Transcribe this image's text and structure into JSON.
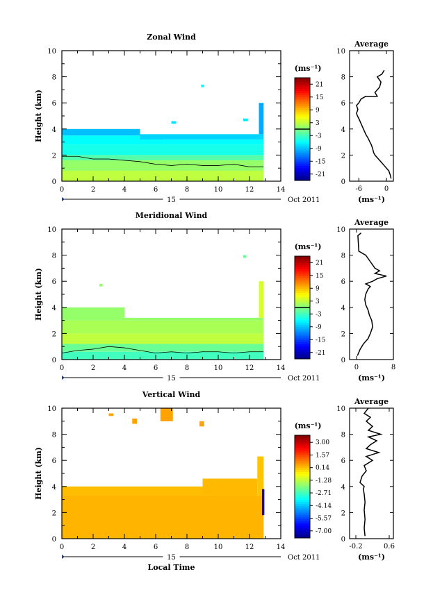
{
  "chart_data": [
    {
      "type": "heatmap",
      "title": "Zonal Wind",
      "xlabel": "",
      "ylabel": "Height (km)",
      "xlim": [
        0,
        14
      ],
      "ylim": [
        0,
        10
      ],
      "x_ticks": [
        "0",
        "2",
        "4",
        "6",
        "8",
        "10",
        "12",
        "14"
      ],
      "y_ticks": [
        "0",
        "2",
        "4",
        "6",
        "8",
        "10"
      ],
      "date_day": "15",
      "date_month": "Oct 2011",
      "colorbar": {
        "unit": "(ms⁻¹)",
        "min": -24,
        "max": 24,
        "tick_labels": [
          "21",
          "15",
          "9",
          "3",
          "-3",
          "-9",
          "-15",
          "-21"
        ],
        "tick_values": [
          21,
          15,
          9,
          3,
          -3,
          -9,
          -15,
          -21
        ],
        "zero_line": 0
      },
      "cells": [
        {
          "x0": 0,
          "x1": 12.9,
          "y0": 0,
          "y1": 0.8,
          "v": 3
        },
        {
          "x0": 0,
          "x1": 12.9,
          "y0": 0.8,
          "y1": 1.6,
          "v": 1
        },
        {
          "x0": 0,
          "x1": 12.9,
          "y0": 1.6,
          "y1": 2.0,
          "v": -2
        },
        {
          "x0": 0,
          "x1": 12.9,
          "y0": 2.0,
          "y1": 2.8,
          "v": -5
        },
        {
          "x0": 0,
          "x1": 6.5,
          "y0": 2.8,
          "y1": 3.5,
          "v": -6
        },
        {
          "x0": 6.5,
          "x1": 12.9,
          "y0": 2.8,
          "y1": 3.2,
          "v": -6
        },
        {
          "x0": 0,
          "x1": 5,
          "y0": 3.5,
          "y1": 4.0,
          "v": -9
        },
        {
          "x0": 5,
          "x1": 12.9,
          "y0": 3.2,
          "y1": 3.6,
          "v": -8
        },
        {
          "x0": 12.6,
          "x1": 12.9,
          "y0": 3.6,
          "y1": 6.0,
          "v": -10
        },
        {
          "x0": 7.0,
          "x1": 7.3,
          "y0": 4.4,
          "y1": 4.6,
          "v": -7
        },
        {
          "x0": 11.6,
          "x1": 11.9,
          "y0": 4.6,
          "y1": 4.8,
          "v": -7
        },
        {
          "x0": 8.9,
          "x1": 9.1,
          "y0": 7.2,
          "y1": 7.4,
          "v": -6
        }
      ],
      "zero_contour": {
        "x": [
          0,
          1,
          2,
          3,
          4,
          5,
          6,
          7,
          8,
          9,
          10,
          11,
          12,
          12.9
        ],
        "y": [
          1.9,
          1.9,
          1.7,
          1.7,
          1.6,
          1.5,
          1.3,
          1.2,
          1.3,
          1.2,
          1.2,
          1.3,
          1.1,
          1.1
        ]
      },
      "profile": {
        "title": "Average",
        "xlabel": "(ms⁻¹)",
        "x_ticks": [
          "-6",
          "0"
        ],
        "tick_values": [
          -6,
          0
        ],
        "xlim": [
          -8,
          1.5
        ],
        "ylim": [
          0,
          10
        ],
        "y_ticks": [
          "0",
          "2",
          "4",
          "6",
          "8",
          "10"
        ],
        "x": [
          1.0,
          0.8,
          0.5,
          0,
          -0.5,
          -1,
          -1.5,
          -2,
          -2.5,
          -2.8,
          -3,
          -3.3,
          -3.6,
          -4.0,
          -4.5,
          -5,
          -5.5,
          -6.0,
          -6.3,
          -6.5,
          -6.2,
          -6.5,
          -6.0,
          -5.5,
          -4.5,
          -2.0,
          -2.5,
          -1.5,
          -1.2,
          -2.0,
          -1.0,
          -0.5
        ],
        "y": [
          0.2,
          0.5,
          0.8,
          1.0,
          1.2,
          1.4,
          1.6,
          1.8,
          2.0,
          2.2,
          2.5,
          2.8,
          3.0,
          3.3,
          3.6,
          4.0,
          4.4,
          4.8,
          5.0,
          5.2,
          5.5,
          5.8,
          6.0,
          6.3,
          6.5,
          6.5,
          6.8,
          7.2,
          7.6,
          8.0,
          8.2,
          8.5
        ]
      }
    },
    {
      "type": "heatmap",
      "title": "Meridional Wind",
      "xlabel": "",
      "ylabel": "Height (km)",
      "xlim": [
        0,
        14
      ],
      "ylim": [
        0,
        10
      ],
      "x_ticks": [
        "0",
        "2",
        "4",
        "6",
        "8",
        "10",
        "12",
        "14"
      ],
      "y_ticks": [
        "0",
        "2",
        "4",
        "6",
        "8",
        "10"
      ],
      "date_day": "15",
      "date_month": "Oct 2011",
      "colorbar": {
        "unit": "(ms⁻¹)",
        "min": -24,
        "max": 24,
        "tick_labels": [
          "21",
          "15",
          "9",
          "3",
          "-3",
          "-9",
          "-15",
          "-21"
        ],
        "tick_values": [
          21,
          15,
          9,
          3,
          -3,
          -9,
          -15,
          -21
        ],
        "zero_line": 0
      },
      "cells": [
        {
          "x0": 0,
          "x1": 12.9,
          "y0": 0,
          "y1": 0.6,
          "v": -3
        },
        {
          "x0": 0,
          "x1": 12.9,
          "y0": 0.6,
          "y1": 1.2,
          "v": -1
        },
        {
          "x0": 0,
          "x1": 12.9,
          "y0": 1.2,
          "y1": 2.0,
          "v": 3
        },
        {
          "x0": 0,
          "x1": 12.9,
          "y0": 2.0,
          "y1": 3.0,
          "v": 2
        },
        {
          "x0": 0,
          "x1": 4.0,
          "y0": 3.0,
          "y1": 4.0,
          "v": 1
        },
        {
          "x0": 4.0,
          "x1": 12.9,
          "y0": 3.0,
          "y1": 3.2,
          "v": 1
        },
        {
          "x0": 12.6,
          "x1": 12.9,
          "y0": 3.2,
          "y1": 6.0,
          "v": 4
        },
        {
          "x0": 2.4,
          "x1": 2.6,
          "y0": 5.6,
          "y1": 5.8,
          "v": 1
        },
        {
          "x0": 11.6,
          "x1": 11.8,
          "y0": 7.8,
          "y1": 8.0,
          "v": -1
        }
      ],
      "zero_contour": {
        "x": [
          0,
          1,
          2,
          3,
          4,
          5,
          6,
          7,
          8,
          9,
          10,
          11,
          12,
          12.9
        ],
        "y": [
          0.5,
          0.7,
          0.8,
          1.0,
          0.9,
          0.7,
          0.5,
          0.6,
          0.5,
          0.6,
          0.6,
          0.5,
          0.6,
          0.6
        ]
      },
      "profile": {
        "title": "Average",
        "xlabel": "(ms⁻¹)",
        "x_ticks": [
          "0",
          "8"
        ],
        "tick_values": [
          0,
          8
        ],
        "xlim": [
          -1.5,
          8
        ],
        "ylim": [
          0,
          10
        ],
        "y_ticks": [
          "0",
          "2",
          "4",
          "6",
          "8",
          "10"
        ],
        "x": [
          0.2,
          0.8,
          1.5,
          2.5,
          3.0,
          3.5,
          3.3,
          2.8,
          2.5,
          2.0,
          1.8,
          2.0,
          2.5,
          3.0,
          2.0,
          3.5,
          4.5,
          6.5,
          4.0,
          5.0,
          4.0,
          3.0,
          2.0,
          0.5,
          0.3,
          1.0
        ],
        "y": [
          0.3,
          0.8,
          1.2,
          1.6,
          2.0,
          2.5,
          3.0,
          3.4,
          3.8,
          4.2,
          4.6,
          5.0,
          5.4,
          5.6,
          5.8,
          6.0,
          6.2,
          6.4,
          6.6,
          6.8,
          7.0,
          7.5,
          8.0,
          8.3,
          9.5,
          9.7
        ]
      }
    },
    {
      "type": "heatmap",
      "title": "Vertical Wind",
      "xlabel": "Local Time",
      "ylabel": "Height (km)",
      "xlim": [
        0,
        14
      ],
      "ylim": [
        0,
        10
      ],
      "x_ticks": [
        "0",
        "2",
        "4",
        "6",
        "8",
        "10",
        "12",
        "14"
      ],
      "y_ticks": [
        "0",
        "2",
        "4",
        "6",
        "8",
        "10"
      ],
      "date_day": "15",
      "date_month": "Oct 2011",
      "colorbar": {
        "unit": "(ms⁻¹)",
        "min": -7.8,
        "max": 3.8,
        "tick_labels": [
          "3.00",
          "1.57",
          "0.14",
          "-1.28",
          "-2.71",
          "-4.14",
          "-5.57",
          "-7.00"
        ],
        "tick_values": [
          3.0,
          1.57,
          0.14,
          -1.28,
          -2.71,
          -4.14,
          -5.57,
          -7.0
        ],
        "zero_line": null
      },
      "cells": [
        {
          "x0": 0,
          "x1": 12.9,
          "y0": 0,
          "y1": 3.3,
          "v": 0.3
        },
        {
          "x0": 0,
          "x1": 9.0,
          "y0": 3.3,
          "y1": 4.0,
          "v": 0.2
        },
        {
          "x0": 9.0,
          "x1": 12.5,
          "y0": 3.3,
          "y1": 4.6,
          "v": 0.25
        },
        {
          "x0": 12.5,
          "x1": 12.9,
          "y0": 3.3,
          "y1": 6.3,
          "v": 0.1
        },
        {
          "x0": 12.8,
          "x1": 12.95,
          "y0": 1.8,
          "y1": 3.8,
          "v": -6.5
        },
        {
          "x0": 6.3,
          "x1": 7.1,
          "y0": 9.0,
          "y1": 10.0,
          "v": 0.5
        },
        {
          "x0": 4.5,
          "x1": 4.8,
          "y0": 8.8,
          "y1": 9.2,
          "v": 0.5
        },
        {
          "x0": 8.8,
          "x1": 9.1,
          "y0": 8.6,
          "y1": 9.0,
          "v": 0.5
        },
        {
          "x0": 3.0,
          "x1": 3.3,
          "y0": 9.4,
          "y1": 9.6,
          "v": 0.5
        }
      ],
      "zero_contour": null,
      "profile": {
        "title": "Average",
        "xlabel": "(ms⁻¹)",
        "x_ticks": [
          "-0.2",
          "0.6"
        ],
        "tick_values": [
          -0.2,
          0.6
        ],
        "xlim": [
          -0.35,
          0.7
        ],
        "ylim": [
          0,
          10
        ],
        "y_ticks": [
          "0",
          "2",
          "4",
          "6",
          "8",
          "10"
        ],
        "x": [
          0.02,
          0.0,
          0.02,
          0.0,
          0.02,
          0.0,
          -0.02,
          0.0,
          -0.1,
          -0.05,
          0.05,
          0.0,
          0.2,
          0.05,
          0.35,
          0.05,
          0.15,
          0.3,
          0.1,
          0.4,
          0.1,
          0.2,
          0.05,
          0.15,
          0.0,
          0.1
        ],
        "y": [
          0.2,
          0.8,
          1.5,
          2.2,
          2.8,
          3.4,
          3.8,
          4.0,
          4.3,
          4.8,
          5.2,
          5.6,
          6.0,
          6.3,
          6.6,
          6.9,
          7.2,
          7.5,
          7.8,
          8.0,
          8.3,
          8.6,
          9.0,
          9.3,
          9.6,
          10.0
        ]
      }
    }
  ]
}
